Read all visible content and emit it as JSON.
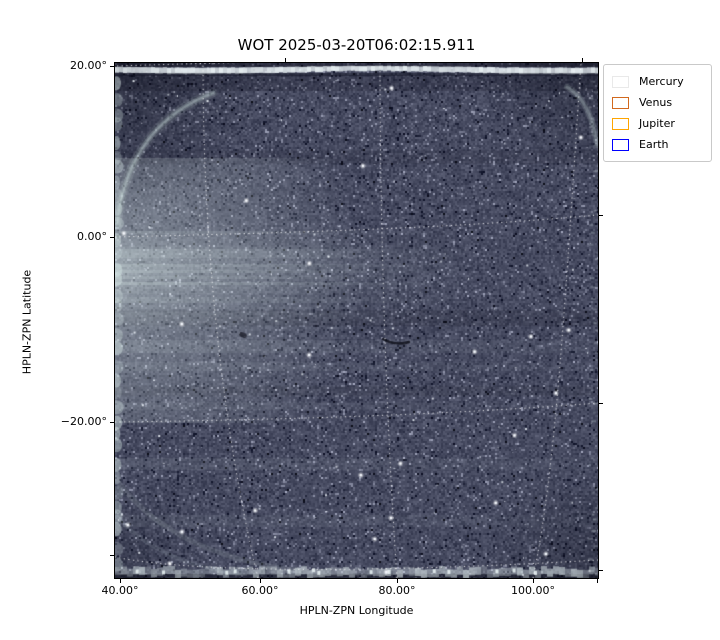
{
  "title": "WOT 2025-03-20T06:02:15.911",
  "axes": {
    "xlabel": "HPLN-ZPN Longitude",
    "ylabel": "HPLN-ZPN Latitude",
    "x_tick_labels": [
      "40.00°",
      "60.00°",
      "80.00°",
      "100.00°"
    ],
    "y_tick_labels": [
      "20.00°",
      "0.00°",
      "−20.00°"
    ]
  },
  "legend": {
    "entries": [
      {
        "label": "Mercury",
        "color": "#e9e9e9"
      },
      {
        "label": "Venus",
        "color": "#d2691e"
      },
      {
        "label": "Jupiter",
        "color": "#ffa500"
      },
      {
        "label": "Earth",
        "color": "#0000ff"
      }
    ]
  },
  "chart_data": {
    "type": "heatmap",
    "title": "WOT 2025-03-20T06:02:15.911",
    "xlabel": "HPLN-ZPN Longitude",
    "ylabel": "HPLN-ZPN Latitude",
    "xlim": [
      39,
      110
    ],
    "ylim": [
      -42,
      20
    ],
    "x_ticks": [
      40,
      60,
      80,
      100
    ],
    "y_ticks": [
      20,
      0,
      -20
    ],
    "grid": {
      "style": "dotted",
      "color": "#ffffff",
      "curved_projection": "ZPN",
      "longitude_lines_deg": [
        60,
        80,
        100
      ],
      "latitude_lines_deg": [
        20,
        0,
        -20,
        -40
      ]
    },
    "legend_position": "upper right, outside axes",
    "legend_entries": [
      {
        "label": "Mercury",
        "edge_color": "#ffffff"
      },
      {
        "label": "Venus",
        "edge_color": "#d2691e"
      },
      {
        "label": "Jupiter",
        "edge_color": "#ffa500"
      },
      {
        "label": "Earth",
        "edge_color": "#0000ff"
      }
    ],
    "image_description": "Noisy slate-blue starfield frame from the WISPR outer telescope (WOT). Bright white band along the top edge, bright scattered-light band near 0° latitude fading rightward from the left edge, faint bright vignette arcs in the corners, bright scalloped left edge, bright strip along the bottom edge, dense faint stars throughout, white dotted curved coordinate grid.",
    "colormap_sample": {
      "background": "#474b61",
      "bright": "#dceae8",
      "dark": "#23252f"
    }
  }
}
